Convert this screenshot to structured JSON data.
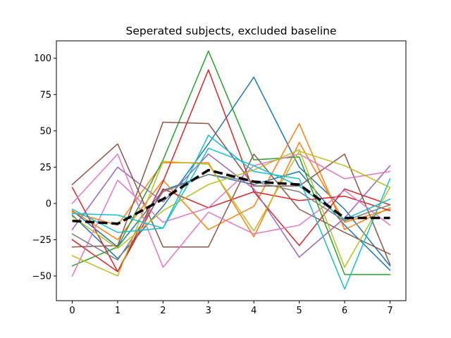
{
  "chart_data": {
    "type": "line",
    "title": "Seperated subjects, excluded baseline",
    "xlabel": "",
    "ylabel": "",
    "x": [
      0,
      1,
      2,
      3,
      4,
      5,
      6,
      7
    ],
    "xticks": [
      "0",
      "1",
      "2",
      "3",
      "4",
      "5",
      "6",
      "7"
    ],
    "yticks": [
      "−50",
      "−25",
      "0",
      "25",
      "50",
      "75",
      "100"
    ],
    "ytick_values": [
      -50,
      -25,
      0,
      25,
      50,
      75,
      100
    ],
    "xlim": [
      -0.35,
      7.35
    ],
    "ylim": [
      -67,
      112
    ],
    "grid": false,
    "legend": "none",
    "series": [
      {
        "color": "#1f77b4",
        "values": [
          -8,
          -38,
          -2,
          41,
          87,
          25,
          -4,
          -43
        ]
      },
      {
        "color": "#1f77b4",
        "values": [
          -5,
          -30,
          9,
          20,
          13,
          22,
          -15,
          -46
        ]
      },
      {
        "color": "#ff7f0e",
        "values": [
          -5,
          -25,
          16,
          -18,
          -2,
          55,
          -18,
          -3
        ]
      },
      {
        "color": "#ff7f0e",
        "values": [
          -6,
          -15,
          28,
          28,
          -23,
          42,
          -13,
          -4
        ]
      },
      {
        "color": "#2ca02c",
        "values": [
          -43,
          -30,
          30,
          105,
          30,
          32,
          -49,
          -49
        ]
      },
      {
        "color": "#d62728",
        "values": [
          11,
          -47,
          15,
          92,
          8,
          -29,
          10,
          -1
        ]
      },
      {
        "color": "#d62728",
        "values": [
          -25,
          -47,
          10,
          -3,
          8,
          2,
          5,
          -5
        ]
      },
      {
        "color": "#9467bd",
        "values": [
          -18,
          25,
          1,
          34,
          10,
          -37,
          -10,
          26
        ]
      },
      {
        "color": "#8c564b",
        "values": [
          13,
          41,
          -30,
          -30,
          34,
          -4,
          -20,
          -35
        ]
      },
      {
        "color": "#8c564b",
        "values": [
          -30,
          -29,
          56,
          55,
          12,
          12,
          34,
          -42
        ]
      },
      {
        "color": "#e377c2",
        "values": [
          0,
          34,
          -44,
          -6,
          -21,
          -15,
          9,
          -15
        ]
      },
      {
        "color": "#e377c2",
        "values": [
          -50,
          16,
          -13,
          -3,
          26,
          34,
          17,
          22
        ]
      },
      {
        "color": "#7f7f7f",
        "values": [
          -21,
          -39,
          8,
          20,
          15,
          8,
          -12,
          -1
        ]
      },
      {
        "color": "#bcbd22",
        "values": [
          -36,
          -50,
          29,
          27,
          -19,
          36,
          26,
          11
        ]
      },
      {
        "color": "#bcbd22",
        "values": [
          -9,
          -31,
          -5,
          13,
          23,
          37,
          -44,
          11
        ]
      },
      {
        "color": "#17becf",
        "values": [
          -7,
          -8,
          -17,
          47,
          22,
          17,
          -59,
          17
        ]
      },
      {
        "color": "#17becf",
        "values": [
          -4,
          -20,
          -17,
          38,
          26,
          12,
          -11,
          3
        ]
      }
    ],
    "mean_series": {
      "color": "#000000",
      "style": "dashed",
      "values": [
        -12,
        -14,
        3,
        23,
        15,
        13,
        -10,
        -10
      ]
    }
  }
}
